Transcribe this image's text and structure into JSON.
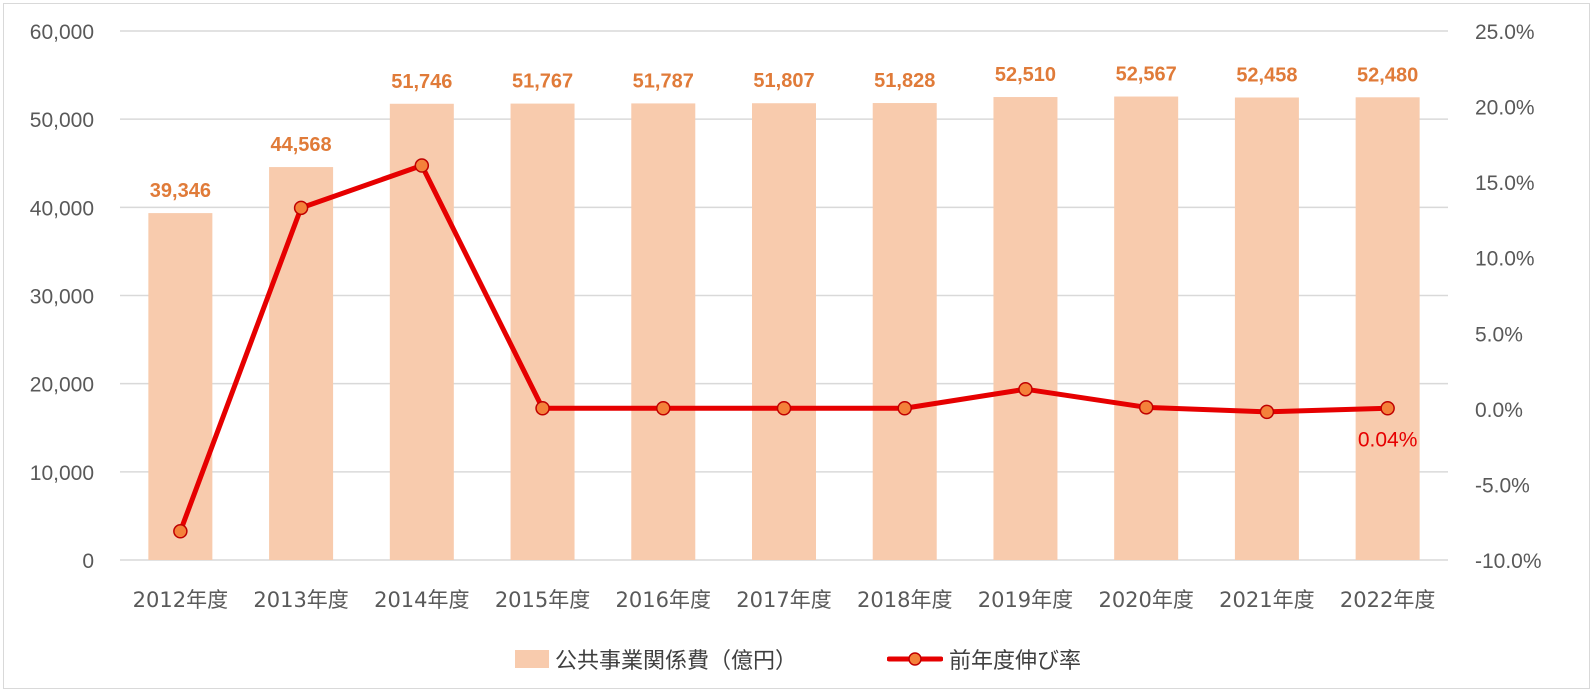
{
  "chart_data": {
    "type": "bar+line",
    "title": "",
    "categories": [
      "2012年度",
      "2013年度",
      "2014年度",
      "2015年度",
      "2016年度",
      "2017年度",
      "2018年度",
      "2019年度",
      "2020年度",
      "2021年度",
      "2022年度"
    ],
    "series": [
      {
        "name": "公共事業関係費（億円）",
        "type": "bar",
        "axis": "left",
        "color": "#f8cbad",
        "label_color": "#e07b39",
        "values": [
          39346,
          44568,
          51746,
          51767,
          51787,
          51807,
          51828,
          52510,
          52567,
          52458,
          52480
        ],
        "labels": [
          "39,346",
          "44,568",
          "51,746",
          "51,767",
          "51,787",
          "51,807",
          "51,828",
          "52,510",
          "52,567",
          "52,458",
          "52,480"
        ]
      },
      {
        "name": "前年度伸び率",
        "type": "line",
        "axis": "right",
        "color": "#e60000",
        "marker_color": "#f4813a",
        "values": [
          -8.1,
          13.3,
          16.1,
          0.04,
          0.04,
          0.04,
          0.04,
          1.3,
          0.1,
          -0.2,
          0.04
        ],
        "annotations": [
          {
            "index": 10,
            "text": "0.04%",
            "color": "#e60000"
          }
        ]
      }
    ],
    "left_axis": {
      "ylim": [
        0,
        60000
      ],
      "ticks": [
        "0",
        "10,000",
        "20,000",
        "30,000",
        "40,000",
        "50,000",
        "60,000"
      ]
    },
    "right_axis": {
      "ylim": [
        -10,
        25
      ],
      "ticks": [
        "-10.0%",
        "-5.0%",
        "0.0%",
        "5.0%",
        "10.0%",
        "15.0%",
        "20.0%",
        "25.0%"
      ]
    },
    "grid": true,
    "legend_position": "bottom",
    "xlabel": "",
    "ylabel": ""
  },
  "legend": {
    "bar_label": "公共事業関係費（億円）",
    "line_label": "前年度伸び率"
  }
}
